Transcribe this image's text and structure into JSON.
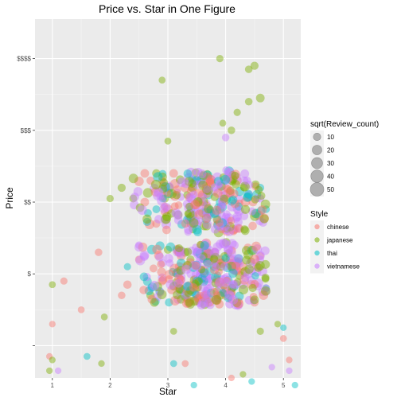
{
  "chart_data": {
    "type": "scatter",
    "title": "Price vs. Star in One Figure",
    "xlabel": "Star",
    "ylabel": "Price",
    "x_ticks": [
      1,
      2,
      3,
      4,
      5
    ],
    "xlim": [
      0.7,
      5.3
    ],
    "y_tick_labels": [
      "",
      "$",
      "$$",
      "$$$",
      "$$$$"
    ],
    "y_tick_values": [
      0,
      1,
      2,
      3,
      4
    ],
    "ylim": [
      -0.45,
      4.55
    ],
    "grid": true,
    "jitter": true,
    "point_alpha": 0.45,
    "size_legend": {
      "title": "sqrt(Review_count)",
      "values": [
        10,
        20,
        30,
        40,
        50
      ],
      "color": "#9e9e9e"
    },
    "color_legend": {
      "title": "Style",
      "entries": [
        {
          "label": "chinese",
          "color": "#f8766d"
        },
        {
          "label": "japanese",
          "color": "#7cae00"
        },
        {
          "label": "thai",
          "color": "#00bfc4"
        },
        {
          "label": "vietnamese",
          "color": "#c77cff"
        }
      ]
    },
    "series": [
      {
        "style": "chinese",
        "points": [
          [
            3.1,
            2.4,
            12
          ],
          [
            3.3,
            2.2,
            14
          ],
          [
            2.8,
            1.7,
            10
          ],
          [
            3.0,
            1.9,
            16
          ],
          [
            2.6,
            2.0,
            12
          ],
          [
            2.9,
            2.3,
            9
          ],
          [
            3.6,
            2.1,
            15
          ],
          [
            4.2,
            2.3,
            13
          ],
          [
            3.2,
            1.1,
            14
          ],
          [
            3.5,
            0.8,
            16
          ],
          [
            2.9,
            0.9,
            12
          ],
          [
            2.3,
            0.85,
            11
          ],
          [
            2.5,
            1.2,
            9
          ],
          [
            4.0,
            0.7,
            13
          ],
          [
            3.8,
            1.2,
            12
          ],
          [
            4.3,
            1.1,
            11
          ],
          [
            1.8,
            1.3,
            8
          ],
          [
            1.2,
            0.9,
            7
          ],
          [
            2.2,
            0.7,
            8
          ],
          [
            1.5,
            0.5,
            6
          ],
          [
            1.0,
            0.3,
            5
          ],
          [
            0.95,
            -0.15,
            5
          ],
          [
            4.5,
            0.6,
            10
          ],
          [
            4.6,
            1.25,
            9
          ],
          [
            3.7,
            2.35,
            11
          ],
          [
            2.7,
            2.3,
            10
          ],
          [
            5.0,
            0.1,
            6
          ],
          [
            5.1,
            -0.2,
            5
          ],
          [
            4.1,
            -0.45,
            5
          ],
          [
            3.3,
            -0.25,
            6
          ],
          [
            2.6,
            2.4,
            12
          ]
        ]
      },
      {
        "style": "japanese",
        "points": [
          [
            3.9,
            4.0,
            7
          ],
          [
            4.5,
            3.9,
            10
          ],
          [
            4.4,
            3.85,
            8
          ],
          [
            2.9,
            3.7,
            6
          ],
          [
            4.6,
            3.45,
            12
          ],
          [
            4.4,
            3.4,
            8
          ],
          [
            4.2,
            3.25,
            7
          ],
          [
            3.95,
            3.1,
            6
          ],
          [
            4.1,
            3.0,
            8
          ],
          [
            3.0,
            2.85,
            6
          ],
          [
            2.2,
            2.2,
            10
          ],
          [
            2.4,
            2.05,
            9
          ],
          [
            2.0,
            2.05,
            7
          ],
          [
            2.8,
            2.4,
            11
          ],
          [
            3.5,
            2.3,
            14
          ],
          [
            3.9,
            1.9,
            13
          ],
          [
            3.3,
            1.3,
            12
          ],
          [
            2.7,
            0.7,
            11
          ],
          [
            1.9,
            0.4,
            6
          ],
          [
            0.95,
            -0.35,
            5
          ],
          [
            1.0,
            -0.2,
            5
          ],
          [
            1.0,
            0.85,
            6
          ],
          [
            3.1,
            0.2,
            6
          ],
          [
            4.6,
            0.2,
            7
          ],
          [
            4.3,
            -0.4,
            5
          ],
          [
            4.9,
            0.3,
            5
          ],
          [
            1.85,
            -0.25,
            5
          ],
          [
            3.6,
            1.85,
            12
          ],
          [
            4.1,
            2.3,
            11
          ],
          [
            2.95,
            2.05,
            10
          ],
          [
            3.75,
            2.25,
            13
          ],
          [
            3.4,
            1.7,
            12
          ]
        ]
      },
      {
        "style": "thai",
        "points": [
          [
            3.5,
            2.3,
            13
          ],
          [
            3.7,
            2.1,
            12
          ],
          [
            4.6,
            2.2,
            9
          ],
          [
            4.7,
            1.9,
            8
          ],
          [
            3.4,
            1.9,
            11
          ],
          [
            3.8,
            1.1,
            12
          ],
          [
            4.1,
            0.8,
            13
          ],
          [
            3.3,
            0.7,
            11
          ],
          [
            4.7,
            0.8,
            8
          ],
          [
            2.3,
            1.1,
            7
          ],
          [
            1.6,
            -0.15,
            6
          ],
          [
            3.1,
            -0.25,
            6
          ],
          [
            3.45,
            -0.55,
            5
          ],
          [
            5.2,
            -0.55,
            5
          ],
          [
            4.45,
            -0.5,
            5
          ],
          [
            5.0,
            0.25,
            5
          ],
          [
            3.5,
            1.3,
            10
          ],
          [
            3.9,
            2.0,
            11
          ],
          [
            4.2,
            1.15,
            10
          ],
          [
            2.8,
            1.9,
            9
          ]
        ]
      },
      {
        "style": "vietnamese",
        "points": [
          [
            4.4,
            2.1,
            12
          ],
          [
            4.6,
            2.05,
            10
          ],
          [
            4.2,
            1.9,
            13
          ],
          [
            3.9,
            1.2,
            14
          ],
          [
            4.1,
            1.15,
            13
          ],
          [
            3.7,
            0.9,
            15
          ],
          [
            4.0,
            0.75,
            14
          ],
          [
            3.4,
            1.0,
            13
          ],
          [
            4.3,
            0.85,
            12
          ],
          [
            4.7,
            0.75,
            10
          ],
          [
            4.6,
            1.2,
            9
          ],
          [
            2.9,
            0.95,
            11
          ],
          [
            3.2,
            0.75,
            10
          ],
          [
            2.5,
            1.4,
            8
          ],
          [
            2.7,
            0.8,
            9
          ],
          [
            4.0,
            2.9,
            8
          ],
          [
            4.2,
            2.35,
            11
          ],
          [
            3.8,
            2.15,
            12
          ],
          [
            3.5,
            1.95,
            11
          ],
          [
            5.1,
            -0.35,
            5
          ],
          [
            1.1,
            -0.35,
            5
          ],
          [
            4.8,
            -0.3,
            5
          ],
          [
            4.15,
            1.4,
            12
          ],
          [
            3.55,
            0.6,
            13
          ]
        ]
      }
    ]
  }
}
